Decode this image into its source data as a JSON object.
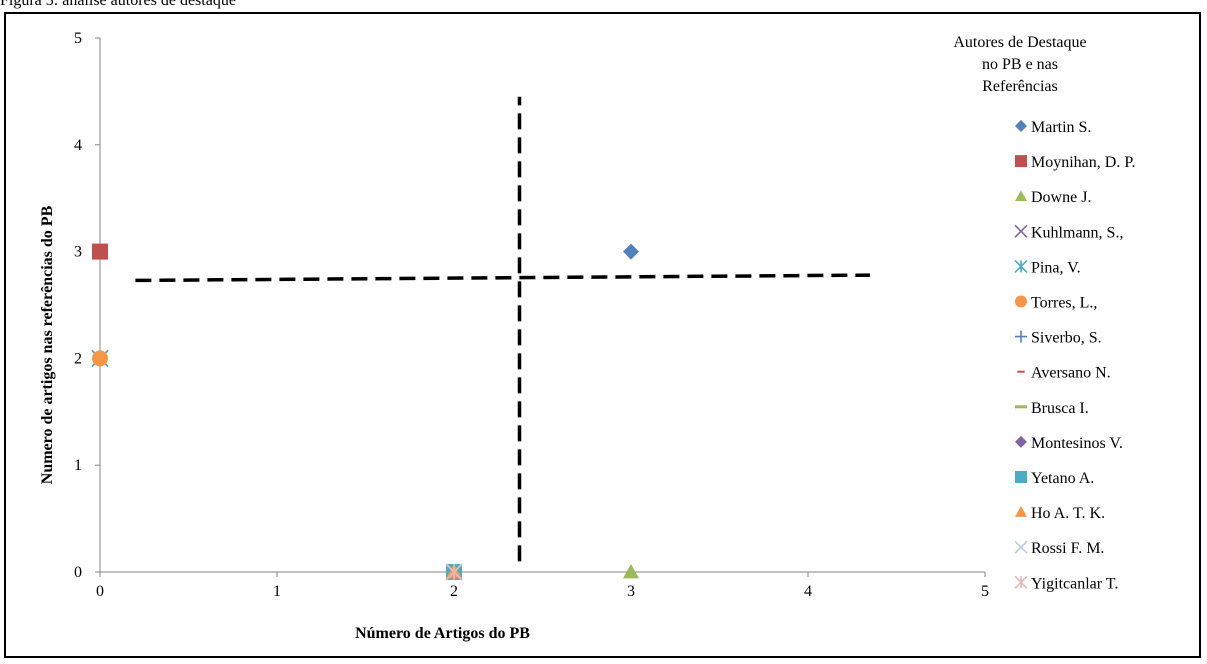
{
  "figure": {
    "caption": "Figura 5: análise autores de destaque"
  },
  "chart_data": {
    "type": "scatter",
    "xlabel": "Número de Artigos do PB",
    "ylabel": "Numero de artigos nas referências do PB",
    "xlim": [
      0,
      5
    ],
    "ylim": [
      0,
      5
    ],
    "x_ticks": [
      "0",
      "1",
      "2",
      "3",
      "4",
      "5"
    ],
    "y_ticks": [
      "0",
      "1",
      "2",
      "3",
      "4",
      "5"
    ],
    "legend_title_lines": [
      "Autores de Destaque",
      "no PB e nas",
      "Referências"
    ],
    "legend_position": "right",
    "grid": false,
    "series": [
      {
        "name": "Martin S.",
        "marker": "diamond",
        "color": "#4F81BD",
        "points": [
          [
            3,
            3
          ]
        ]
      },
      {
        "name": "Moynihan, D. P.",
        "marker": "square",
        "color": "#C0504D",
        "points": [
          [
            0,
            3
          ]
        ]
      },
      {
        "name": "Downe J.",
        "marker": "triangle",
        "color": "#9BBB59",
        "points": [
          [
            3,
            0
          ]
        ]
      },
      {
        "name": "Kuhlmann, S.,",
        "marker": "x",
        "color": "#8064A2",
        "points": [
          [
            0,
            2
          ]
        ]
      },
      {
        "name": "Pina, V.",
        "marker": "star",
        "color": "#4BACC6",
        "points": [
          [
            0,
            2
          ]
        ]
      },
      {
        "name": "Torres, L.,",
        "marker": "circle",
        "color": "#F79646",
        "points": [
          [
            0,
            2
          ]
        ]
      },
      {
        "name": "Siverbo, S.",
        "marker": "plus",
        "color": "#4F81BD",
        "points": [
          [
            2,
            0
          ]
        ]
      },
      {
        "name": "Aversano N.",
        "marker": "dash",
        "color": "#C0504D",
        "points": [
          [
            2,
            0
          ]
        ]
      },
      {
        "name": "Brusca I.",
        "marker": "longdash",
        "color": "#9BBB59",
        "points": [
          [
            2,
            0
          ]
        ]
      },
      {
        "name": "Montesinos V.",
        "marker": "diamond",
        "color": "#8064A2",
        "points": [
          [
            2,
            0
          ]
        ]
      },
      {
        "name": "Yetano A.",
        "marker": "square",
        "color": "#4BACC6",
        "points": [
          [
            2,
            0
          ]
        ]
      },
      {
        "name": "Ho A. T. K.",
        "marker": "triangle",
        "color": "#F79646",
        "points": [
          [
            2,
            0
          ]
        ]
      },
      {
        "name": "Rossi F. M.",
        "marker": "x",
        "color": "#B9CDE5",
        "points": [
          [
            2,
            0
          ]
        ]
      },
      {
        "name": "Yigitcanlar T.",
        "marker": "star",
        "color": "#E6B9B8",
        "points": [
          [
            2,
            0
          ]
        ]
      }
    ],
    "reference_lines": [
      {
        "orientation": "vertical",
        "points": [
          [
            2.37,
            0.1
          ],
          [
            2.37,
            4.45
          ]
        ],
        "style": "dashed",
        "color": "#000000"
      },
      {
        "orientation": "horizontal",
        "points": [
          [
            0.2,
            2.73
          ],
          [
            4.35,
            2.78
          ]
        ],
        "style": "dashed",
        "color": "#000000"
      }
    ]
  }
}
